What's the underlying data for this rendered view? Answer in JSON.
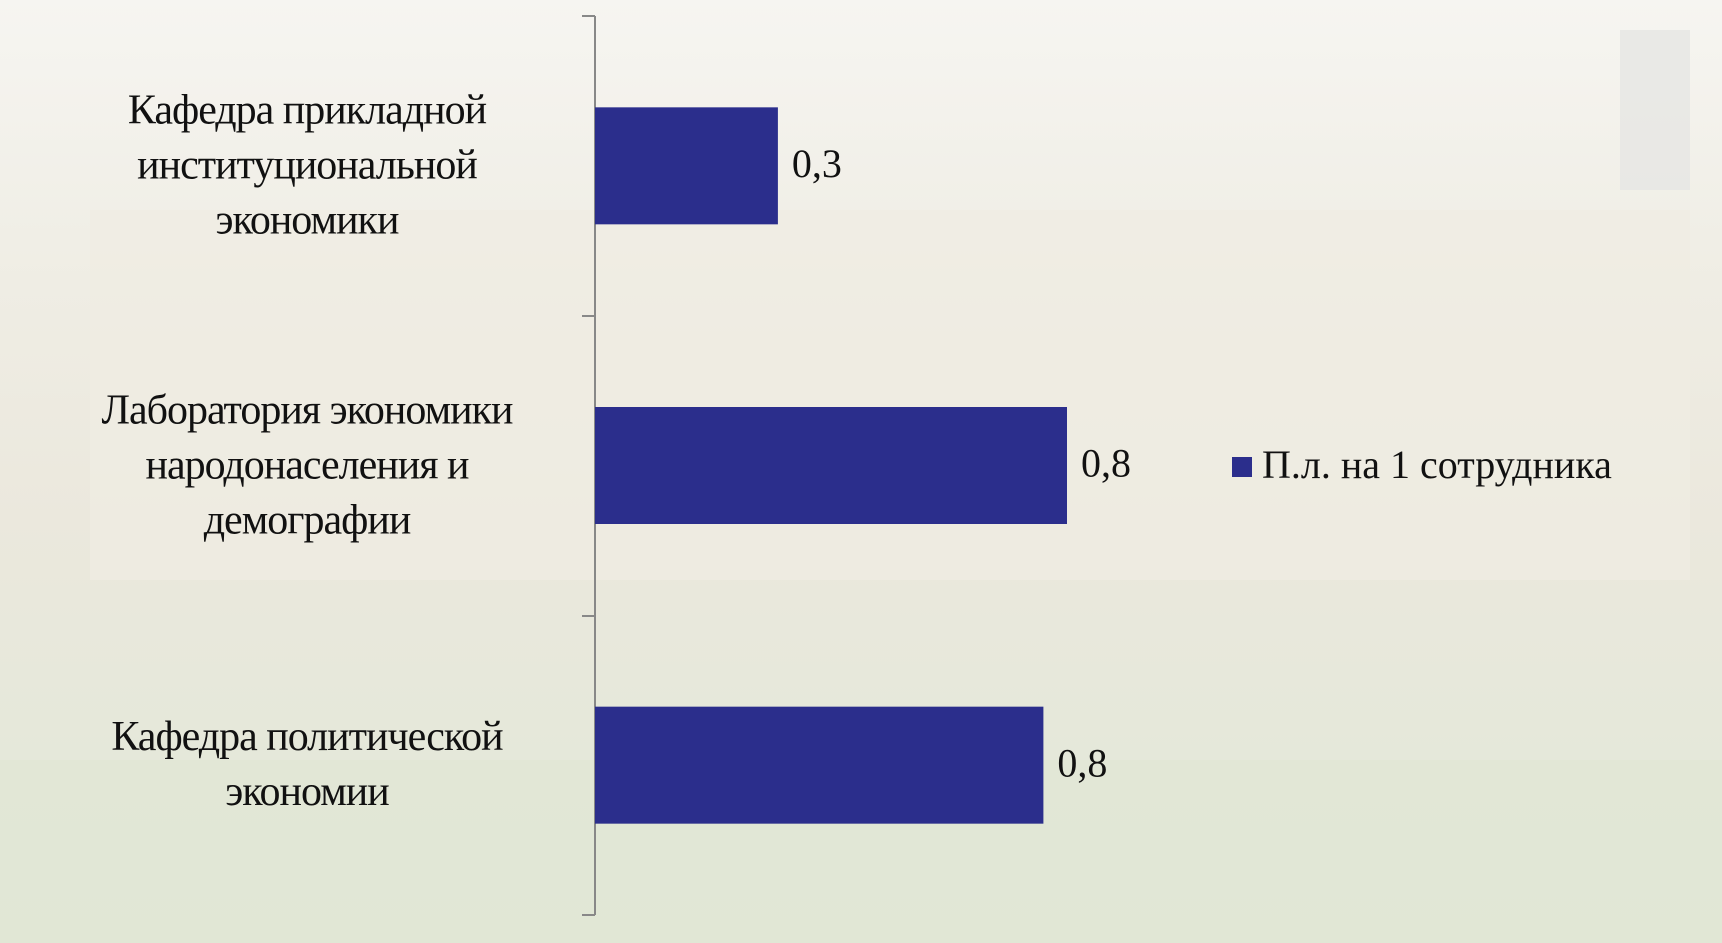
{
  "chart_data": {
    "type": "barh",
    "categories": [
      "Кафедра прикладной\nинституциональной\nэкономики",
      "Лаборатория экономики\nнародонаселения и\nдемографии",
      "Кафедра политической\nэкономии"
    ],
    "series": [
      {
        "name": "П.л. на 1 сотрудника",
        "color": "#2b2e8c",
        "values": [
          0.31,
          0.8,
          0.76
        ],
        "value_labels": [
          "0,3",
          "0,8",
          "0,8"
        ]
      }
    ],
    "legend": "right"
  }
}
